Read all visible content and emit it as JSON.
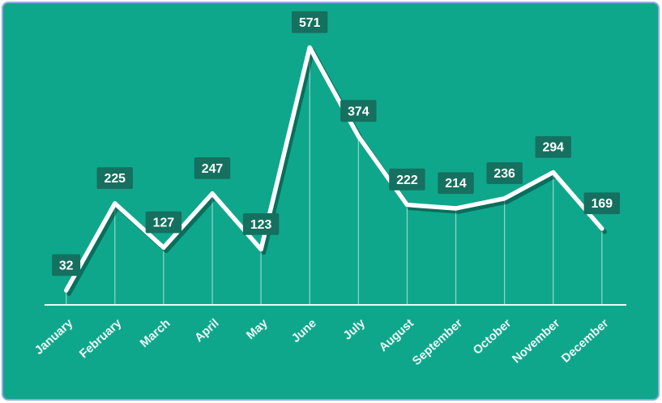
{
  "chart_data": {
    "type": "line",
    "title": "",
    "categories": [
      "January",
      "February",
      "March",
      "April",
      "May",
      "June",
      "July",
      "August",
      "September",
      "October",
      "November",
      "December"
    ],
    "series": [
      {
        "name": "monthly-values",
        "values": [
          32,
          225,
          127,
          247,
          123,
          571,
          374,
          222,
          214,
          236,
          294,
          169
        ]
      }
    ],
    "data_labels": [
      "32",
      "225",
      "127",
      "247",
      "123",
      "571",
      "374",
      "222",
      "214",
      "236",
      "294",
      "169"
    ],
    "xlabel": "",
    "ylabel": "",
    "ylim": [
      0,
      620
    ],
    "grid": "none",
    "legend": "none",
    "drop_lines": true,
    "x_axis_line": true,
    "x_label_rotation_deg": -42
  },
  "colors": {
    "background": "#0fa78c",
    "line": "#ffffff",
    "line_shadow": "#04352c",
    "label_box": "#15705f",
    "label_text": "#ffffff",
    "axis_line": "#ffffff",
    "drop_line": "rgba(255,255,255,0.55)",
    "frame_border": "#94a8e2"
  }
}
